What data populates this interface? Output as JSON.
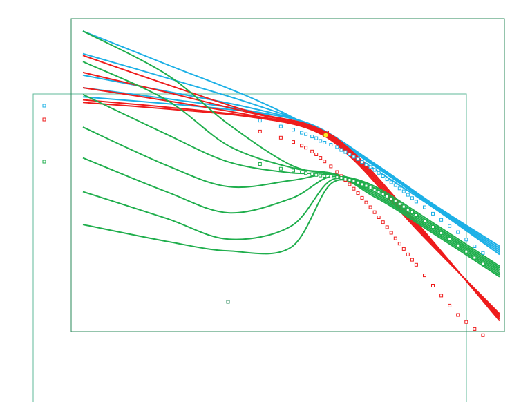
{
  "colors": {
    "blue": "#1cb0e6",
    "red": "#ee1c1c",
    "green": "#1fae4c",
    "frame": "#2a8a5a",
    "frame_light": "#5fb89a",
    "highlight_fill": "#ffe92a",
    "highlight_stroke": "#c89a00"
  },
  "chart_data": {
    "type": "line",
    "title": "",
    "xlabel": "",
    "ylabel": "",
    "x_range": [
      0,
      100
    ],
    "y_range": [
      0,
      100
    ],
    "grid": false,
    "legend": "left",
    "legend_entries": [
      {
        "color": "#1cb0e6"
      },
      {
        "color": "#ee1c1c"
      },
      {
        "color": "#1fae4c"
      }
    ],
    "series": [
      {
        "color": "#1cb0e6",
        "x": [
          0,
          20,
          40,
          55,
          70,
          85,
          100
        ],
        "y": [
          100,
          88.7,
          77.5,
          67,
          53,
          39,
          23.9
        ]
      },
      {
        "color": "#1cb0e6",
        "x": [
          0,
          20,
          40,
          55,
          70,
          85,
          100
        ],
        "y": [
          92.3,
          84.1,
          75.5,
          67.5,
          54,
          39.3,
          24.6
        ]
      },
      {
        "color": "#1cb0e6",
        "x": [
          0,
          20,
          40,
          55,
          70,
          85,
          100
        ],
        "y": [
          85,
          79.5,
          73.9,
          67.7,
          54.3,
          39.6,
          25.3
        ]
      },
      {
        "color": "#1cb0e6",
        "x": [
          0,
          20,
          40,
          55,
          70,
          85,
          100
        ],
        "y": [
          80.7,
          77,
          72.9,
          67.8,
          54.6,
          39.9,
          26
        ]
      },
      {
        "color": "#1cb0e6",
        "x": [
          0,
          20,
          40,
          55,
          70,
          85,
          100
        ],
        "y": [
          77.6,
          75.3,
          72.5,
          68.1,
          54.9,
          40.2,
          26.7
        ]
      },
      {
        "color": "#ee1c1c",
        "x": [
          0,
          20,
          40,
          55,
          65,
          80,
          100
        ],
        "y": [
          91.7,
          81.9,
          72.6,
          67.7,
          58.5,
          35,
          1.3
        ]
      },
      {
        "color": "#ee1c1c",
        "x": [
          0,
          20,
          40,
          55,
          65,
          80,
          100
        ],
        "y": [
          85.9,
          79.2,
          72.2,
          67.3,
          57.9,
          34.4,
          1.9
        ]
      },
      {
        "color": "#ee1c1c",
        "x": [
          0,
          20,
          40,
          55,
          65,
          80,
          100
        ],
        "y": [
          80.7,
          76.3,
          71.4,
          66.9,
          57.3,
          33.8,
          2.5
        ]
      },
      {
        "color": "#ee1c1c",
        "x": [
          0,
          20,
          40,
          55,
          65,
          80,
          100
        ],
        "y": [
          76.6,
          74.1,
          71,
          66.6,
          56.7,
          33.2,
          3.1
        ]
      },
      {
        "color": "#ee1c1c",
        "x": [
          0,
          20,
          40,
          55,
          65,
          80,
          100
        ],
        "y": [
          75.7,
          73.5,
          70.8,
          66.3,
          56.1,
          32.6,
          3.7
        ]
      },
      {
        "color": "#1fae4c",
        "x": [
          0,
          20,
          35,
          50,
          60,
          70,
          85,
          100
        ],
        "y": [
          100,
          85.3,
          68.2,
          54.3,
          51.3,
          47.1,
          33.8,
          19.9
        ]
      },
      {
        "color": "#1fae4c",
        "x": [
          0,
          20,
          35,
          50,
          60,
          70,
          85,
          100
        ],
        "y": [
          89.6,
          76.6,
          60.9,
          53.5,
          51.5,
          46.5,
          33.2,
          19.3
        ]
      },
      {
        "color": "#1fae4c",
        "x": [
          0,
          20,
          35,
          50,
          60,
          70,
          85,
          100
        ],
        "y": [
          78.4,
          64.9,
          55.4,
          51.7,
          51.3,
          45.9,
          32.6,
          18.7
        ]
      },
      {
        "color": "#1fae4c",
        "x": [
          0,
          20,
          35,
          50,
          60,
          70,
          85,
          100
        ],
        "y": [
          67.3,
          54.3,
          47,
          49.1,
          51.1,
          45.3,
          32,
          18.1
        ]
      },
      {
        "color": "#1fae4c",
        "x": [
          0,
          20,
          35,
          50,
          60,
          70,
          85,
          100
        ],
        "y": [
          56.8,
          45.3,
          38.1,
          43,
          50.5,
          44.7,
          31.4,
          17.5
        ]
      },
      {
        "color": "#1fae4c",
        "x": [
          0,
          20,
          35,
          50,
          60,
          70,
          85,
          100
        ],
        "y": [
          45.3,
          36.2,
          29.1,
          33.6,
          49.5,
          44.1,
          30.8,
          16.9
        ]
      },
      {
        "color": "#1fae4c",
        "x": [
          0,
          20,
          35,
          50,
          60,
          70,
          85,
          100
        ],
        "y": [
          34.1,
          28.4,
          25.1,
          26.4,
          48.5,
          43.5,
          30.2,
          16.3
        ]
      }
    ],
    "markers": [
      {
        "color": "#1cb0e6",
        "x": [
          42.5,
          47.5,
          50.5,
          52.5,
          53.5,
          55,
          56,
          57,
          58,
          59.5,
          61,
          62,
          63,
          64,
          65,
          66,
          67,
          68,
          69,
          70,
          71,
          72,
          73,
          74,
          75,
          76,
          77,
          78,
          79,
          80,
          82,
          84,
          86,
          88,
          90,
          92,
          94,
          96
        ],
        "y": [
          69.5,
          67.5,
          66.4,
          65.4,
          64.9,
          64.1,
          63.5,
          62.6,
          62,
          61.3,
          60.5,
          59.5,
          58.8,
          58,
          57.2,
          56.4,
          55.4,
          54.5,
          53.7,
          52.7,
          51.7,
          50.7,
          49.5,
          48.5,
          47.5,
          46.4,
          45.4,
          44.2,
          43.1,
          41.9,
          40,
          37.8,
          35.7,
          33.6,
          31.5,
          29,
          26.7,
          24.4
        ]
      },
      {
        "color": "#ee1c1c",
        "x": [
          42.5,
          47.5,
          50.5,
          52.5,
          53.5,
          55,
          56,
          57,
          58,
          59.5,
          61,
          62,
          63,
          64,
          65,
          66,
          67,
          68,
          69,
          70,
          71,
          72,
          73,
          74,
          75,
          76,
          77,
          78,
          79,
          80,
          82,
          84,
          86,
          88,
          90,
          92,
          94,
          96
        ],
        "y": [
          65.8,
          63.7,
          62.2,
          61,
          60.3,
          59,
          58,
          56.8,
          55.6,
          53.9,
          52,
          50.6,
          49.3,
          47.8,
          46.3,
          44.8,
          43.2,
          41.6,
          40,
          38.3,
          36.6,
          34.9,
          33.2,
          31.3,
          29.4,
          27.6,
          25.8,
          23.9,
          22.1,
          20.4,
          16.8,
          13.3,
          9.9,
          6.5,
          3.3,
          0.9,
          -1.5,
          -3.6
        ]
      },
      {
        "color": "#1fae4c",
        "x": [
          42.5,
          47.5,
          50.5,
          52.5,
          53.5,
          55,
          56,
          57,
          58,
          59.5,
          61,
          62,
          63,
          64,
          65,
          66,
          67,
          68,
          69,
          70,
          71,
          72,
          73,
          74,
          75,
          76,
          77,
          78,
          79,
          80,
          82,
          84,
          86,
          88,
          90,
          92,
          94,
          96
        ],
        "y": [
          54.7,
          53.1,
          52.5,
          51.9,
          51.6,
          51.3,
          51,
          50.8,
          50.7,
          50.5,
          50.2,
          50,
          49.7,
          49.3,
          48.9,
          48.4,
          47.8,
          47.3,
          46.7,
          46,
          45.3,
          44.5,
          43.7,
          42.9,
          42,
          41.1,
          40.2,
          39.2,
          38.3,
          37.3,
          35.3,
          33.3,
          31.2,
          29.1,
          27,
          24.9,
          22.8,
          20.7
        ]
      }
    ],
    "highlight_point": {
      "x": 58.3,
      "y": 64.8
    }
  }
}
